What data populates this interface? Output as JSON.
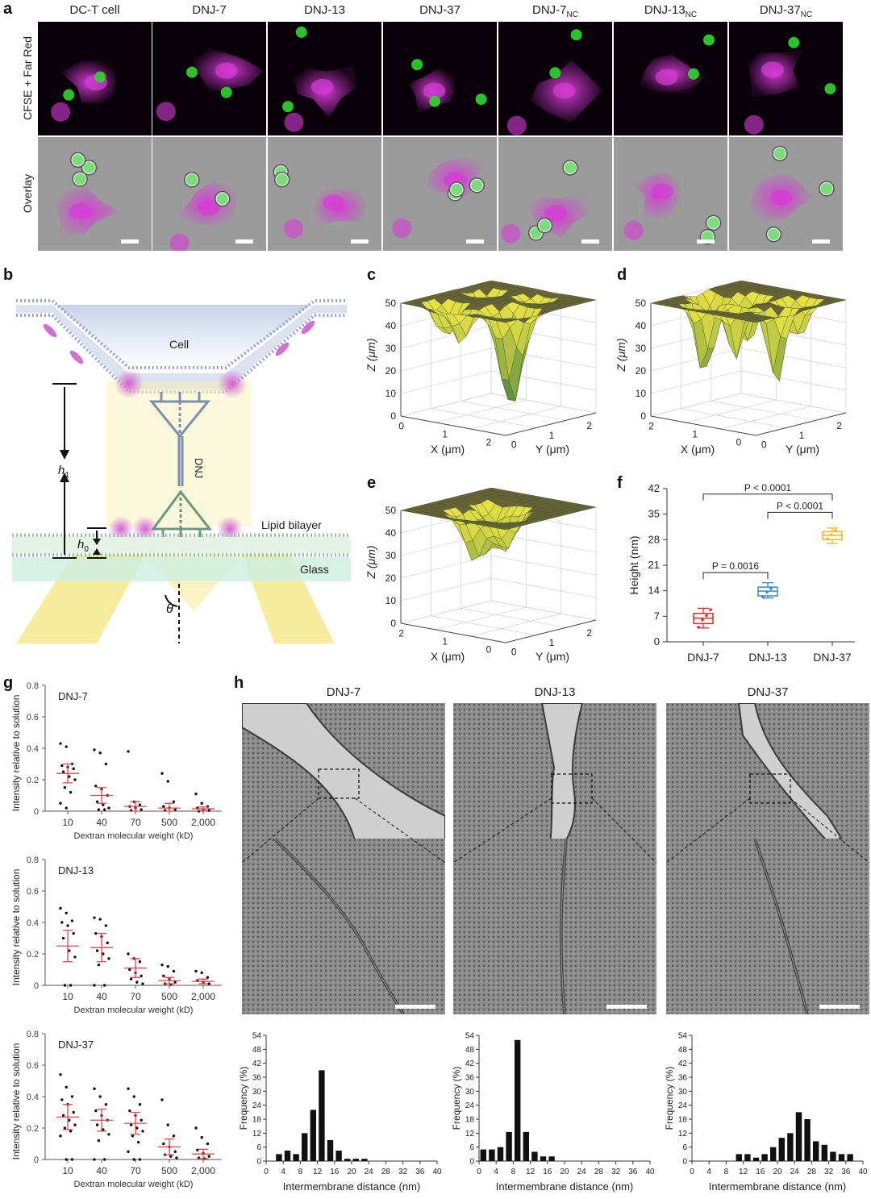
{
  "panel_labels": {
    "a": "a",
    "b": "b",
    "c": "c",
    "d": "d",
    "e": "e",
    "f": "f",
    "g": "g",
    "h": "h"
  },
  "panel_a": {
    "columns": [
      "DC-T cell",
      "DNJ-7",
      "DNJ-13",
      "DNJ-37",
      "DNJ-7",
      "DNJ-13",
      "DNJ-37"
    ],
    "column_subscripts": [
      "",
      "",
      "",
      "",
      "NC",
      "NC",
      "NC"
    ],
    "rows": [
      "CFSE + Far Red",
      "Overlay"
    ],
    "colors": {
      "cell_stain": "#d63cd6",
      "tcell_stain": "#2fd62f",
      "brightfield": "#9b9b9b"
    }
  },
  "panel_b": {
    "cell_label": "Cell",
    "dnj_label": "DNJ",
    "h1_label": "h",
    "h1_sub": "1",
    "h0_label": "h",
    "h0_sub": "0",
    "lipid_label": "Lipid bilayer",
    "glass_label": "Glass",
    "theta_label": "θ"
  },
  "surface_plots": [
    {
      "id": "c",
      "z_label": "Z (μm)",
      "x_label": "X (μm)",
      "y_label": "Y (μm)",
      "z_ticks": [
        "0",
        "10",
        "20",
        "30",
        "40",
        "50"
      ],
      "x_ticks": [
        "0",
        "1",
        "2"
      ],
      "y_ticks": [
        "0",
        "1",
        "2"
      ]
    },
    {
      "id": "d",
      "z_label": "Z (μm)",
      "x_label": "X (μm)",
      "y_label": "Y (μm)",
      "z_ticks": [
        "0",
        "10",
        "20",
        "30",
        "40",
        "50"
      ],
      "x_ticks": [
        "2",
        "1",
        "0"
      ],
      "y_ticks": [
        "0",
        "1",
        "2"
      ]
    },
    {
      "id": "e",
      "z_label": "Z (μm)",
      "x_label": "X (μm)",
      "y_label": "Y (μm)",
      "z_ticks": [
        "0",
        "10",
        "20",
        "30",
        "40",
        "50"
      ],
      "x_ticks": [
        "2",
        "1",
        "0"
      ],
      "y_ticks": [
        "0",
        "1",
        "2"
      ]
    }
  ],
  "chart_data": [
    {
      "id": "f",
      "type": "box",
      "ylabel": "Height (nm)",
      "categories": [
        "DNJ-7",
        "DNJ-13",
        "DNJ-37"
      ],
      "ylim": [
        0,
        42
      ],
      "yticks": [
        0,
        7,
        14,
        21,
        28,
        35,
        42
      ],
      "colors": [
        "#d62d2d",
        "#3b86c4",
        "#f0b41e"
      ],
      "boxes": [
        {
          "min": 3.8,
          "q1": 5.0,
          "median": 6.5,
          "q3": 7.8,
          "max": 9.2,
          "points": [
            4.0,
            6.0,
            7.2,
            8.8
          ]
        },
        {
          "min": 12.0,
          "q1": 12.6,
          "median": 13.9,
          "q3": 15.0,
          "max": 16.2,
          "points": [
            12.4,
            13.6,
            14.6
          ]
        },
        {
          "min": 27.0,
          "q1": 28.0,
          "median": 29.2,
          "q3": 30.2,
          "max": 31.2,
          "points": [
            28.2,
            29.4,
            30.6
          ]
        }
      ],
      "comparisons": [
        {
          "from": 0,
          "to": 2,
          "text": "P < 0.0001"
        },
        {
          "from": 1,
          "to": 2,
          "text": "P < 0.0001"
        },
        {
          "from": 0,
          "to": 1,
          "text": "P = 0.0016"
        }
      ]
    },
    {
      "id": "g",
      "type": "scatter",
      "xlabel": "Dextran molecular weight (kD)",
      "ylabel": "Intensity relative to solution",
      "categories": [
        "10",
        "40",
        "70",
        "500",
        "2,000"
      ],
      "ylim": [
        0,
        0.8
      ],
      "yticks": [
        "0",
        "0.2",
        "0.4",
        "0.6",
        "0.8"
      ],
      "mean_color": "#e0474c",
      "series": [
        {
          "name": "DNJ-7",
          "means": [
            0.24,
            0.1,
            0.03,
            0.02,
            0.015
          ],
          "sems": [
            0.06,
            0.05,
            0.03,
            0.03,
            0.012
          ],
          "points": [
            [
              0.43,
              0.41,
              0.3,
              0.29,
              0.28,
              0.27,
              0.25,
              0.22,
              0.2,
              0.15,
              0.12,
              0.05,
              0.02
            ],
            [
              0.39,
              0.37,
              0.3,
              0.16,
              0.14,
              0.1,
              0.06,
              0.04,
              0.02,
              0.01,
              0.01
            ],
            [
              0.38,
              0.06,
              0.04,
              0.03,
              0.02,
              0.01,
              0.005
            ],
            [
              0.24,
              0.19,
              0.06,
              0.03,
              0.02,
              0.01,
              0.005
            ],
            [
              0.11,
              0.05,
              0.03,
              0.02,
              0.01,
              0.005,
              0.0
            ]
          ]
        },
        {
          "name": "DNJ-13",
          "means": [
            0.25,
            0.24,
            0.11,
            0.03,
            0.025
          ],
          "sems": [
            0.1,
            0.09,
            0.06,
            0.02,
            0.015
          ],
          "points": [
            [
              0.49,
              0.46,
              0.41,
              0.4,
              0.38,
              0.33,
              0.3,
              0.22,
              0.18,
              0.0,
              0.0
            ],
            [
              0.43,
              0.42,
              0.38,
              0.33,
              0.31,
              0.27,
              0.22,
              0.2,
              0.17,
              0.13,
              0.0,
              0.0
            ],
            [
              0.2,
              0.17,
              0.15,
              0.1,
              0.08,
              0.06,
              0.04,
              0.02,
              0.01
            ],
            [
              0.13,
              0.12,
              0.09,
              0.06,
              0.04,
              0.02,
              0.01,
              0.005
            ],
            [
              0.09,
              0.08,
              0.05,
              0.03,
              0.02,
              0.01
            ]
          ]
        },
        {
          "name": "DNJ-37",
          "means": [
            0.27,
            0.25,
            0.23,
            0.08,
            0.035
          ],
          "sems": [
            0.08,
            0.07,
            0.07,
            0.05,
            0.03
          ],
          "points": [
            [
              0.54,
              0.46,
              0.4,
              0.38,
              0.35,
              0.3,
              0.28,
              0.25,
              0.22,
              0.2,
              0.18,
              0.15,
              0.0,
              0.0
            ],
            [
              0.45,
              0.4,
              0.35,
              0.31,
              0.28,
              0.25,
              0.22,
              0.19,
              0.16,
              0.12,
              0.0,
              0.0
            ],
            [
              0.45,
              0.4,
              0.35,
              0.31,
              0.28,
              0.25,
              0.22,
              0.2,
              0.18,
              0.15,
              0.11,
              0.05,
              0.0,
              0.0
            ],
            [
              0.38,
              0.22,
              0.15,
              0.1,
              0.08,
              0.05,
              0.03,
              0.02,
              0.01
            ],
            [
              0.2,
              0.14,
              0.1,
              0.06,
              0.04,
              0.02,
              0.01,
              0.005
            ]
          ]
        }
      ]
    },
    {
      "id": "h",
      "type": "bar",
      "xlabel": "Intermembrane distance (nm)",
      "ylabel": "Frequency (%)",
      "xlim": [
        0,
        40
      ],
      "xticks": [
        "0",
        "4",
        "8",
        "12",
        "16",
        "20",
        "24",
        "28",
        "32",
        "36",
        "40"
      ],
      "ylim": [
        0,
        54
      ],
      "yticks": [
        "0",
        "6",
        "12",
        "18",
        "24",
        "30",
        "36",
        "42",
        "48",
        "54"
      ],
      "series": [
        {
          "name": "DNJ-7",
          "x": [
            3,
            5,
            7,
            9,
            11,
            13,
            15,
            17,
            19,
            21,
            23
          ],
          "values": [
            3,
            4.5,
            3,
            12,
            22,
            39,
            9,
            4.5,
            1,
            1,
            1
          ]
        },
        {
          "name": "DNJ-13",
          "x": [
            1,
            3,
            5,
            7,
            9,
            11,
            13,
            15,
            17
          ],
          "values": [
            5,
            5,
            6,
            12.5,
            52,
            12.5,
            4,
            2,
            2
          ]
        },
        {
          "name": "DNJ-37",
          "x": [
            11,
            13,
            15,
            17,
            19,
            21,
            23,
            25,
            27,
            29,
            31,
            33,
            35,
            37
          ],
          "values": [
            3,
            3,
            1.5,
            3,
            6,
            10,
            12,
            21,
            18,
            8.5,
            7,
            4,
            3,
            3
          ]
        }
      ]
    }
  ]
}
